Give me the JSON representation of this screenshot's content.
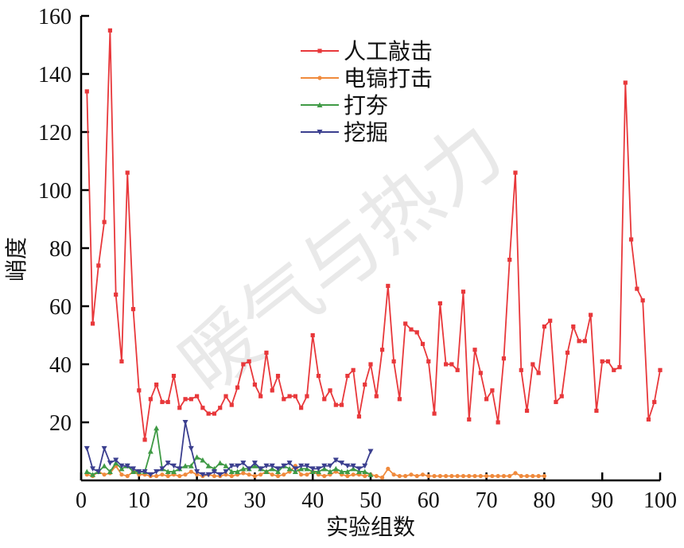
{
  "chart_data": {
    "type": "line",
    "title": "",
    "xlabel": "实验组数",
    "ylabel": "峭度",
    "xlim": [
      0,
      100
    ],
    "ylim": [
      0,
      160
    ],
    "x_ticks": [
      0,
      10,
      20,
      30,
      40,
      50,
      60,
      70,
      80,
      90,
      100
    ],
    "y_ticks": [
      20,
      40,
      60,
      80,
      100,
      120,
      140,
      160
    ],
    "legend_position": "top-center",
    "grid": false,
    "watermark": "暖气与热力",
    "series": [
      {
        "name": "人工敲击",
        "color": "#e8383b",
        "marker": "square",
        "x": [
          1,
          2,
          3,
          4,
          5,
          6,
          7,
          8,
          9,
          10,
          11,
          12,
          13,
          14,
          15,
          16,
          17,
          18,
          19,
          20,
          21,
          22,
          23,
          24,
          25,
          26,
          27,
          28,
          29,
          30,
          31,
          32,
          33,
          34,
          35,
          36,
          37,
          38,
          39,
          40,
          41,
          42,
          43,
          44,
          45,
          46,
          47,
          48,
          49,
          50,
          51,
          52,
          53,
          54,
          55,
          56,
          57,
          58,
          59,
          60,
          61,
          62,
          63,
          64,
          65,
          66,
          67,
          68,
          69,
          70,
          71,
          72,
          73,
          74,
          75,
          76,
          77,
          78,
          79,
          80,
          81,
          82,
          83,
          84,
          85,
          86,
          87,
          88,
          89,
          90,
          91,
          92,
          93,
          94,
          95,
          96,
          97,
          98,
          99,
          100
        ],
        "y": [
          134,
          54,
          74,
          89,
          155,
          64,
          41,
          106,
          59,
          31,
          14,
          28,
          33,
          27,
          27,
          36,
          25,
          28,
          28,
          29,
          25,
          23,
          23,
          25,
          29,
          26,
          32,
          40,
          41,
          33,
          29,
          44,
          31,
          36,
          28,
          29,
          29,
          25,
          29,
          50,
          36,
          28,
          31,
          26,
          26,
          36,
          38,
          22,
          33,
          40,
          29,
          45,
          67,
          41,
          28,
          54,
          52,
          51,
          47,
          41,
          23,
          61,
          40,
          40,
          38,
          65,
          21,
          45,
          37,
          28,
          31,
          20,
          42,
          76,
          106,
          38,
          24,
          40,
          37,
          53,
          55,
          27,
          29,
          44,
          53,
          48,
          48,
          57,
          24,
          41,
          41,
          38,
          39,
          137,
          83,
          66,
          62,
          21,
          27,
          38
        ]
      },
      {
        "name": "电镐打击",
        "color": "#f08a3c",
        "marker": "circle",
        "x": [
          1,
          2,
          3,
          4,
          5,
          6,
          7,
          8,
          9,
          10,
          11,
          12,
          13,
          14,
          15,
          16,
          17,
          18,
          19,
          20,
          21,
          22,
          23,
          24,
          25,
          26,
          27,
          28,
          29,
          30,
          31,
          32,
          33,
          34,
          35,
          36,
          37,
          38,
          39,
          40,
          41,
          42,
          43,
          44,
          45,
          46,
          47,
          48,
          49,
          50,
          51,
          52,
          53,
          54,
          55,
          56,
          57,
          58,
          59,
          60,
          61,
          62,
          63,
          64,
          65,
          66,
          67,
          68,
          69,
          70,
          71,
          72,
          73,
          74,
          75,
          76,
          77,
          78,
          79,
          80
        ],
        "y": [
          2,
          1.5,
          3,
          2,
          2.5,
          5,
          2,
          1.5,
          3,
          2,
          2,
          1.5,
          1.5,
          2,
          1.5,
          2,
          1.5,
          2,
          3,
          2,
          1.5,
          2,
          1.5,
          1.5,
          2,
          1.5,
          2,
          2.5,
          2,
          1.5,
          2,
          3,
          2,
          1.5,
          2,
          3,
          5,
          2,
          2,
          3,
          2,
          1.5,
          2,
          3,
          2,
          1.5,
          2,
          2,
          1.5,
          2,
          1.5,
          1,
          4,
          2,
          1.5,
          1.5,
          2,
          1.5,
          2,
          1.5,
          1.5,
          1.5,
          1.5,
          1.5,
          1.5,
          1.5,
          1.5,
          1.5,
          1.5,
          1.5,
          1.5,
          1.5,
          1.5,
          1.5,
          2.5,
          1.5,
          1.5,
          1.5,
          1.5,
          1.5
        ]
      },
      {
        "name": "打夯",
        "color": "#3f9a45",
        "marker": "triangle-up",
        "x": [
          1,
          2,
          3,
          4,
          5,
          6,
          7,
          8,
          9,
          10,
          11,
          12,
          13,
          14,
          15,
          16,
          17,
          18,
          19,
          20,
          21,
          22,
          23,
          24,
          25,
          26,
          27,
          28,
          29,
          30,
          31,
          32,
          33,
          34,
          35,
          36,
          37,
          38,
          39,
          40,
          41,
          42,
          43,
          44,
          45,
          46,
          47,
          48,
          49,
          50
        ],
        "y": [
          3,
          2,
          3,
          5,
          3,
          6,
          4,
          5,
          3,
          3,
          3,
          10,
          18,
          4,
          3,
          3,
          4,
          5,
          5,
          8,
          7,
          5,
          4,
          6,
          5,
          3,
          3,
          4,
          4,
          5,
          4,
          3,
          4,
          3,
          5,
          4,
          3,
          4,
          4,
          3,
          3,
          4,
          3,
          4,
          3,
          3,
          4,
          3,
          3,
          2
        ]
      },
      {
        "name": "挖掘",
        "color": "#3b3f8f",
        "marker": "triangle-down",
        "x": [
          1,
          2,
          3,
          4,
          5,
          6,
          7,
          8,
          9,
          10,
          11,
          12,
          13,
          14,
          15,
          16,
          17,
          18,
          19,
          20,
          21,
          22,
          23,
          24,
          25,
          26,
          27,
          28,
          29,
          30,
          31,
          32,
          33,
          34,
          35,
          36,
          37,
          38,
          39,
          40,
          41,
          42,
          43,
          44,
          45,
          46,
          47,
          48,
          49,
          50
        ],
        "y": [
          11,
          4,
          3,
          11,
          6,
          7,
          5,
          5,
          4,
          3,
          3,
          2,
          3,
          4,
          6,
          5,
          4,
          20,
          11,
          3,
          2,
          2,
          3,
          2,
          3,
          5,
          5,
          6,
          4,
          6,
          4,
          5,
          5,
          4,
          5,
          6,
          4,
          5,
          5,
          4,
          4,
          5,
          5,
          7,
          6,
          5,
          5,
          4,
          5,
          10
        ]
      }
    ]
  }
}
